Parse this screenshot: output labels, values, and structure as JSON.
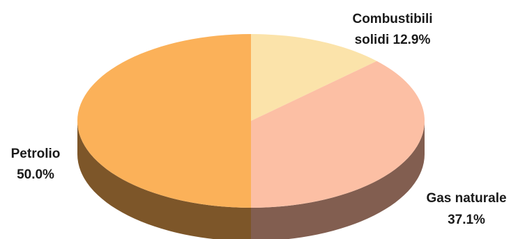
{
  "chart_data": {
    "type": "pie",
    "style": "3d",
    "slices": [
      {
        "label": "Combustibili solidi",
        "value": 12.9,
        "value_label": "12.9%",
        "color": "#fbe3aa",
        "side_color": "#c9b07a"
      },
      {
        "label": "Gas naturale",
        "value": 37.1,
        "value_label": "37.1%",
        "color": "#fcbfa4",
        "side_color": "#825e50"
      },
      {
        "label": "Petrolio",
        "value": 50.0,
        "value_label": "50.0%",
        "color": "#fbb159",
        "side_color": "#7d5629"
      }
    ],
    "labels": {
      "combustibili_line1": "Combustibili",
      "combustibili_line2": "solidi 12.9%",
      "gas_line1": "Gas naturale",
      "gas_line2": "37.1%",
      "petrolio_line1": "Petrolio",
      "petrolio_line2": "50.0%"
    }
  }
}
